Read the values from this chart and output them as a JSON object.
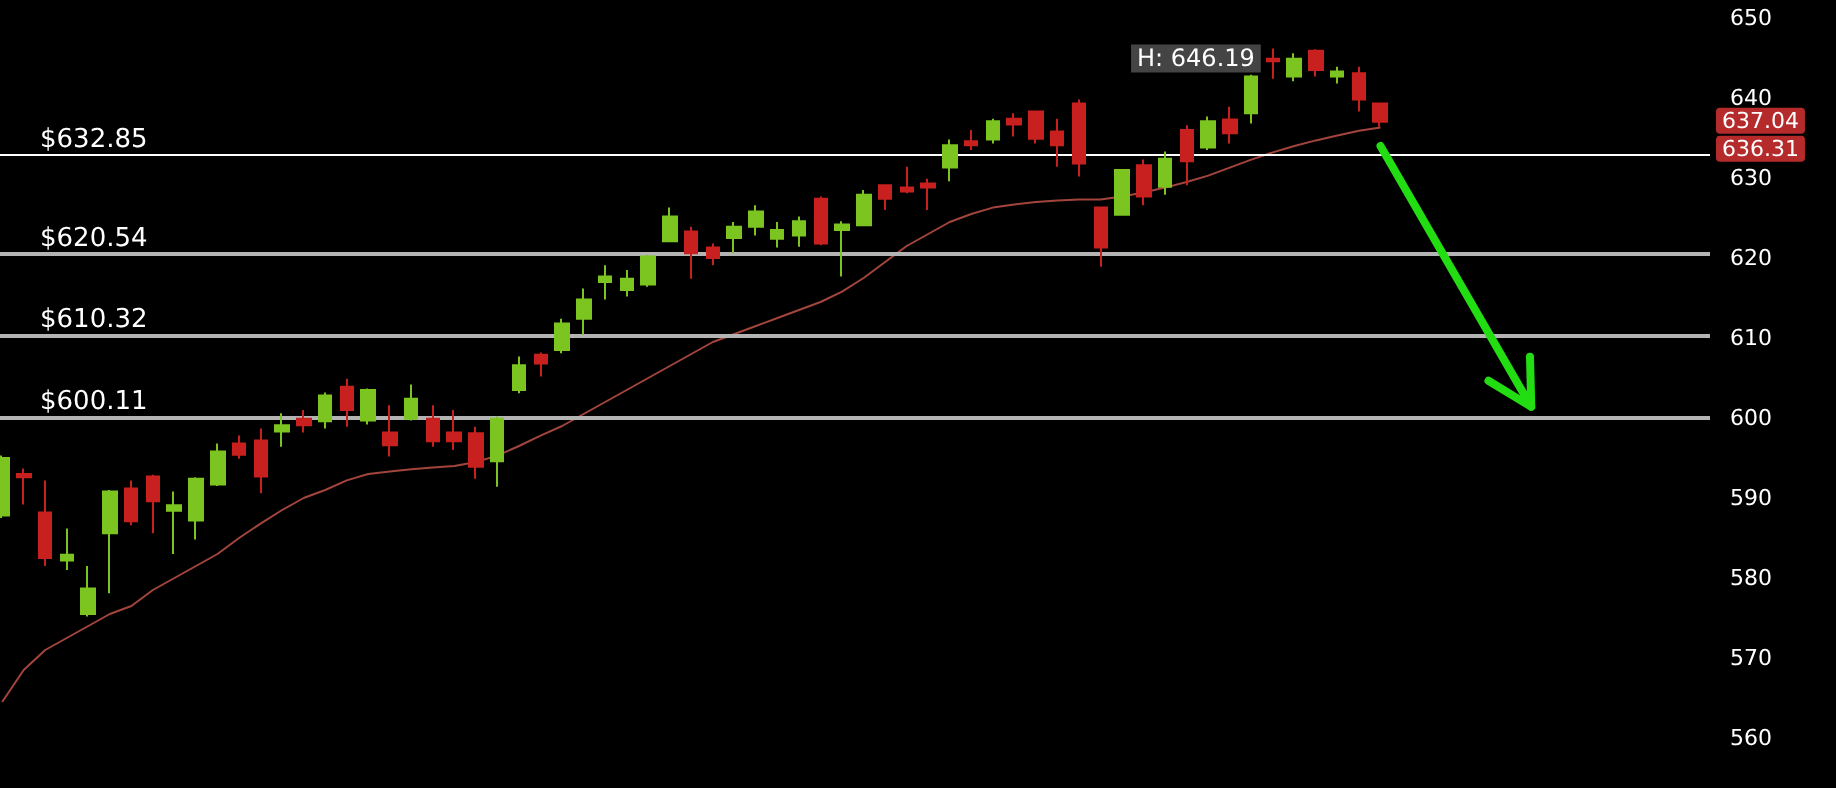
{
  "chart_data": {
    "type": "candlestick",
    "categories": [
      null,
      null,
      null,
      null,
      null,
      null,
      null,
      null,
      null,
      null,
      null,
      null,
      null,
      null,
      null,
      null,
      null,
      null,
      null,
      null,
      null,
      null,
      null,
      null,
      null,
      null,
      null,
      null,
      null,
      null,
      null,
      null,
      null,
      null,
      null,
      null,
      null,
      null,
      null,
      null,
      null,
      null,
      null,
      null,
      null,
      null,
      null,
      null,
      null,
      null,
      null,
      null,
      null,
      null,
      null,
      null,
      null,
      null,
      null,
      null,
      null,
      null,
      null,
      null,
      null
    ],
    "series": [
      {
        "type": "candlestick",
        "ohlc": [
          [
            587.8,
            595.3,
            587.5,
            595.0
          ],
          [
            593.0,
            593.7,
            589.2,
            592.6
          ],
          [
            588.2,
            592.2,
            581.5,
            582.5
          ],
          [
            582.2,
            586.2,
            581.0,
            582.9
          ],
          [
            575.5,
            581.5,
            575.2,
            578.7
          ],
          [
            585.6,
            591.0,
            578.1,
            590.8
          ],
          [
            591.2,
            592.2,
            586.6,
            587.1
          ],
          [
            592.7,
            592.9,
            585.6,
            589.6
          ],
          [
            588.4,
            590.8,
            583.0,
            589.1
          ],
          [
            587.2,
            592.6,
            584.8,
            592.4
          ],
          [
            591.7,
            596.8,
            591.5,
            595.8
          ],
          [
            596.8,
            597.8,
            594.9,
            595.4
          ],
          [
            597.2,
            598.7,
            590.6,
            592.7
          ],
          [
            598.3,
            600.6,
            596.4,
            599.1
          ],
          [
            599.9,
            601.0,
            598.2,
            599.1
          ],
          [
            599.6,
            603.2,
            598.7,
            602.8
          ],
          [
            603.9,
            604.9,
            598.9,
            601.0
          ],
          [
            599.7,
            603.7,
            599.2,
            603.5
          ],
          [
            598.2,
            601.6,
            595.2,
            596.6
          ],
          [
            599.9,
            604.2,
            599.7,
            602.4
          ],
          [
            599.9,
            601.6,
            596.4,
            597.1
          ],
          [
            598.2,
            601.0,
            596.0,
            597.1
          ],
          [
            598.1,
            598.9,
            592.4,
            593.9
          ],
          [
            594.6,
            600.2,
            591.4,
            599.9
          ],
          [
            603.5,
            607.7,
            603.1,
            606.6
          ],
          [
            607.9,
            608.2,
            605.2,
            606.8
          ],
          [
            608.5,
            612.4,
            608.1,
            611.8
          ],
          [
            612.4,
            616.2,
            610.4,
            614.8
          ],
          [
            617.0,
            619.1,
            614.8,
            617.7
          ],
          [
            616.0,
            618.5,
            615.2,
            617.4
          ],
          [
            616.7,
            620.4,
            616.4,
            620.2
          ],
          [
            622.1,
            626.3,
            622.0,
            625.2
          ],
          [
            623.3,
            623.9,
            617.4,
            620.6
          ],
          [
            621.3,
            621.8,
            619.1,
            620.0
          ],
          [
            622.5,
            624.5,
            620.6,
            623.9
          ],
          [
            623.9,
            626.6,
            622.8,
            625.8
          ],
          [
            622.4,
            624.5,
            621.3,
            623.5
          ],
          [
            622.8,
            625.2,
            621.4,
            624.6
          ],
          [
            627.4,
            627.7,
            621.6,
            621.8
          ],
          [
            623.5,
            624.6,
            617.7,
            624.2
          ],
          [
            624.1,
            628.5,
            624.0,
            627.9
          ],
          [
            629.1,
            629.2,
            626.0,
            627.4
          ],
          [
            628.8,
            631.4,
            628.1,
            628.3
          ],
          [
            629.3,
            629.9,
            626.0,
            628.8
          ],
          [
            631.3,
            634.8,
            629.6,
            634.1
          ],
          [
            634.6,
            636.0,
            633.5,
            634.1
          ],
          [
            634.8,
            637.4,
            634.3,
            637.1
          ],
          [
            637.4,
            638.1,
            635.2,
            636.7
          ],
          [
            638.3,
            638.4,
            634.3,
            634.9
          ],
          [
            635.8,
            637.4,
            631.4,
            634.1
          ],
          [
            639.3,
            639.8,
            630.2,
            631.8
          ],
          [
            626.3,
            626.4,
            618.9,
            621.3
          ],
          [
            625.4,
            631.1,
            625.3,
            631.0
          ],
          [
            631.6,
            632.3,
            626.6,
            627.7
          ],
          [
            628.9,
            633.3,
            627.9,
            632.4
          ],
          [
            636.0,
            636.6,
            629.1,
            632.1
          ],
          [
            633.8,
            637.7,
            633.5,
            637.1
          ],
          [
            637.3,
            638.9,
            634.3,
            635.6
          ],
          [
            638.1,
            642.9,
            636.8,
            642.7
          ],
          [
            644.9,
            646.19,
            642.4,
            644.6
          ],
          [
            642.7,
            645.6,
            642.1,
            644.9
          ],
          [
            645.9,
            646.1,
            642.7,
            643.5
          ],
          [
            642.7,
            643.9,
            641.8,
            643.3
          ],
          [
            643.1,
            643.9,
            638.3,
            639.8
          ],
          [
            639.3,
            639.4,
            636.4,
            637.04
          ]
        ],
        "colors": [
          "#7cc520",
          "#c8201e",
          "#c8201e",
          "#7cc520",
          "#7cc520",
          "#7cc520",
          "#c8201e",
          "#c8201e",
          "#7cc520",
          "#7cc520",
          "#7cc520",
          "#c8201e",
          "#c8201e",
          "#7cc520",
          "#c8201e",
          "#7cc520",
          "#c8201e",
          "#7cc520",
          "#c8201e",
          "#7cc520",
          "#c8201e",
          "#c8201e",
          "#c8201e",
          "#7cc520",
          "#7cc520",
          "#c8201e",
          "#7cc520",
          "#7cc520",
          "#7cc520",
          "#7cc520",
          "#7cc520",
          "#7cc520",
          "#c8201e",
          "#c8201e",
          "#7cc520",
          "#7cc520",
          "#7cc520",
          "#7cc520",
          "#c8201e",
          "#7cc520",
          "#7cc520",
          "#c8201e",
          "#c8201e",
          "#c8201e",
          "#7cc520",
          "#c8201e",
          "#7cc520",
          "#c8201e",
          "#c8201e",
          "#c8201e",
          "#c8201e",
          "#c8201e",
          "#7cc520",
          "#c8201e",
          "#7cc520",
          "#c8201e",
          "#7cc520",
          "#c8201e",
          "#7cc520",
          "#c8201e",
          "#7cc520",
          "#c8201e",
          "#7cc520",
          "#c8201e",
          "#c8201e"
        ]
      },
      {
        "type": "line",
        "color": "#a3453d",
        "values": [
          564.5,
          568.5,
          571,
          572.5,
          574,
          575.5,
          576.5,
          578.5,
          580,
          581.5,
          583,
          585,
          586.8,
          588.5,
          590,
          591,
          592.2,
          593,
          593.3,
          593.6,
          593.8,
          594,
          594.5,
          595.3,
          596.5,
          597.8,
          599,
          600.5,
          602,
          603.5,
          605,
          606.5,
          608,
          609.5,
          610.5,
          611.5,
          612.5,
          613.5,
          614.5,
          615.8,
          617.5,
          619.5,
          621.5,
          623,
          624.5,
          625.5,
          626.3,
          626.7,
          627,
          627.2,
          627.3,
          627.3,
          627.7,
          628.2,
          628.8,
          629.5,
          630.3,
          631.3,
          632.3,
          633.2,
          634,
          634.7,
          635.3,
          635.9,
          636.31
        ]
      }
    ],
    "ylim": [
      560,
      650
    ],
    "yticks": [
      560,
      570,
      580,
      590,
      600,
      610,
      620,
      630,
      640,
      650
    ],
    "grid": false,
    "marker": "none",
    "ref_lines": [
      {
        "axis": "y",
        "value": 632.85,
        "label": "$632.85",
        "color": "#ffffff"
      },
      {
        "axis": "y",
        "value": 620.54,
        "label": "$620.54",
        "color": "#b4b4b4"
      },
      {
        "axis": "y",
        "value": 610.32,
        "label": "$610.32",
        "color": "#b4b4b4"
      },
      {
        "axis": "y",
        "value": 600.11,
        "label": "$600.11",
        "color": "#b4b4b4"
      }
    ],
    "annotations": [
      "H: 646.19",
      "637.04",
      "636.31"
    ]
  }
}
